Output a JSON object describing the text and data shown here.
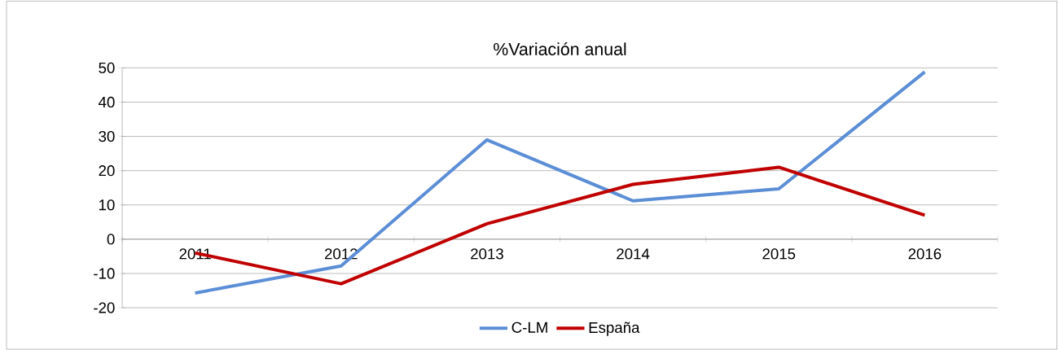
{
  "chart_data": {
    "type": "line",
    "title": "%Variación anual",
    "categories": [
      "2011",
      "2012",
      "2013",
      "2014",
      "2015",
      "2016"
    ],
    "series": [
      {
        "name": "C-LM",
        "color": "#5b8ed6",
        "values": [
          -15.7,
          -7.8,
          29,
          11.2,
          14.7,
          48.8
        ]
      },
      {
        "name": "España",
        "color": "#c00000",
        "values": [
          -4,
          -13,
          4.5,
          16,
          21,
          7
        ]
      }
    ],
    "ylim": [
      -20,
      50
    ],
    "yticks": [
      -20,
      -10,
      0,
      10,
      20,
      30,
      40,
      50
    ],
    "grid": "y",
    "legend": "bottom"
  }
}
